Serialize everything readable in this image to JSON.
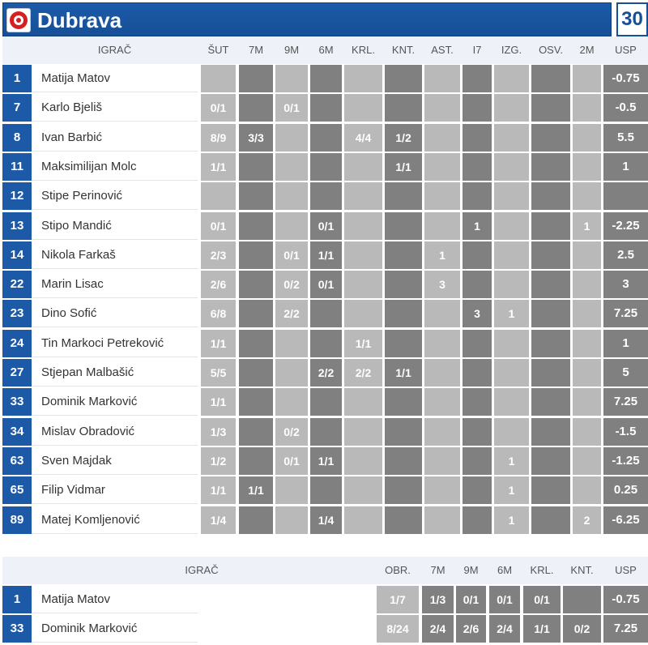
{
  "team": {
    "name": "Dubrava",
    "score": "30"
  },
  "table1": {
    "headers": {
      "player": "IGRAČ",
      "cols": [
        "ŠUT",
        "7M",
        "9M",
        "6M",
        "KRL.",
        "KNT.",
        "AST.",
        "I7",
        "IZG.",
        "OSV.",
        "2M",
        "USP"
      ]
    },
    "rows": [
      {
        "num": "1",
        "name": "Matija Matov",
        "cells": [
          "",
          "",
          "",
          "",
          "",
          "",
          "",
          "",
          "",
          "",
          "",
          "-0.75"
        ]
      },
      {
        "num": "7",
        "name": "Karlo Bjeliš",
        "cells": [
          "0/1",
          "",
          "0/1",
          "",
          "",
          "",
          "",
          "",
          "",
          "",
          "",
          "-0.5"
        ]
      },
      {
        "num": "8",
        "name": "Ivan Barbić",
        "cells": [
          "8/9",
          "3/3",
          "",
          "",
          "4/4",
          "1/2",
          "",
          "",
          "",
          "",
          "",
          "5.5"
        ]
      },
      {
        "num": "11",
        "name": "Maksimilijan Molc",
        "cells": [
          "1/1",
          "",
          "",
          "",
          "",
          "1/1",
          "",
          "",
          "",
          "",
          "",
          "1"
        ]
      },
      {
        "num": "12",
        "name": "Stipe Perinović",
        "cells": [
          "",
          "",
          "",
          "",
          "",
          "",
          "",
          "",
          "",
          "",
          "",
          ""
        ]
      },
      {
        "num": "13",
        "name": "Stipo Mandić",
        "cells": [
          "0/1",
          "",
          "",
          "0/1",
          "",
          "",
          "",
          "1",
          "",
          "",
          "1",
          "-2.25"
        ]
      },
      {
        "num": "14",
        "name": "Nikola Farkaš",
        "cells": [
          "2/3",
          "",
          "0/1",
          "1/1",
          "",
          "",
          "1",
          "",
          "",
          "",
          "",
          "2.5"
        ]
      },
      {
        "num": "22",
        "name": "Marin Lisac",
        "cells": [
          "2/6",
          "",
          "0/2",
          "0/1",
          "",
          "",
          "3",
          "",
          "",
          "",
          "",
          "3"
        ]
      },
      {
        "num": "23",
        "name": "Dino Sofić",
        "cells": [
          "6/8",
          "",
          "2/2",
          "",
          "",
          "",
          "",
          "3",
          "1",
          "",
          "",
          "7.25"
        ]
      },
      {
        "num": "24",
        "name": "Tin Markoci Petreković",
        "cells": [
          "1/1",
          "",
          "",
          "",
          "1/1",
          "",
          "",
          "",
          "",
          "",
          "",
          "1"
        ]
      },
      {
        "num": "27",
        "name": "Stjepan Malbašić",
        "cells": [
          "5/5",
          "",
          "",
          "2/2",
          "2/2",
          "1/1",
          "",
          "",
          "",
          "",
          "",
          "5"
        ]
      },
      {
        "num": "33",
        "name": "Dominik Marković",
        "cells": [
          "1/1",
          "",
          "",
          "",
          "",
          "",
          "",
          "",
          "",
          "",
          "",
          "7.25"
        ]
      },
      {
        "num": "34",
        "name": "Mislav Obradović",
        "cells": [
          "1/3",
          "",
          "0/2",
          "",
          "",
          "",
          "",
          "",
          "",
          "",
          "",
          "-1.5"
        ]
      },
      {
        "num": "63",
        "name": "Sven Majdak",
        "cells": [
          "1/2",
          "",
          "0/1",
          "1/1",
          "",
          "",
          "",
          "",
          "1",
          "",
          "",
          "-1.25"
        ]
      },
      {
        "num": "65",
        "name": "Filip Vidmar",
        "cells": [
          "1/1",
          "1/1",
          "",
          "",
          "",
          "",
          "",
          "",
          "1",
          "",
          "",
          "0.25"
        ]
      },
      {
        "num": "89",
        "name": "Matej Komljenović",
        "cells": [
          "1/4",
          "",
          "",
          "1/4",
          "",
          "",
          "",
          "",
          "1",
          "",
          "2",
          "-6.25"
        ]
      }
    ]
  },
  "table2": {
    "headers": {
      "player": "IGRAČ",
      "cols": [
        "OBR.",
        "7M",
        "9M",
        "6M",
        "KRL.",
        "KNT.",
        "USP"
      ]
    },
    "rows": [
      {
        "num": "1",
        "name": "Matija Matov",
        "cells": [
          "1/7",
          "1/3",
          "0/1",
          "0/1",
          "0/1",
          "",
          "-0.75"
        ]
      },
      {
        "num": "33",
        "name": "Dominik Marković",
        "cells": [
          "8/24",
          "2/4",
          "2/6",
          "2/4",
          "1/1",
          "0/2",
          "7.25"
        ]
      }
    ]
  }
}
